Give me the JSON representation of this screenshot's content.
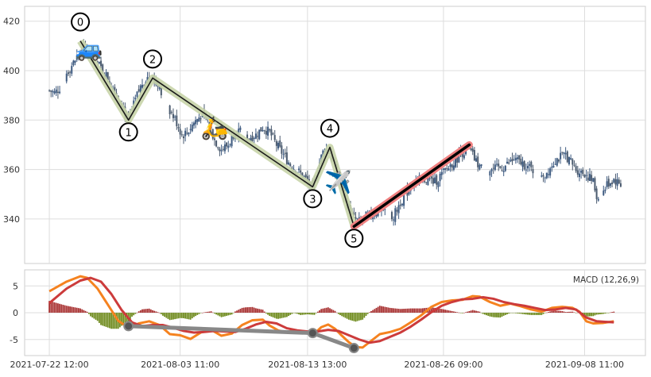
{
  "chart_data": [
    {
      "type": "candlestick",
      "panel": "price",
      "ylim": [
        322,
        426
      ],
      "yticks": [
        340,
        360,
        380,
        400,
        420
      ],
      "grid": true,
      "ohlc_profile": [
        [
          0,
          392
        ],
        [
          3,
          391
        ],
        [
          6,
          393
        ],
        [
          10,
          399
        ],
        [
          14,
          403
        ],
        [
          18,
          408
        ],
        [
          22,
          410
        ],
        [
          26,
          405
        ],
        [
          30,
          401
        ],
        [
          34,
          397
        ],
        [
          38,
          392
        ],
        [
          42,
          387
        ],
        [
          44,
          382
        ],
        [
          46,
          380
        ],
        [
          48,
          384
        ],
        [
          51,
          390
        ],
        [
          54,
          395
        ],
        [
          57,
          397
        ],
        [
          60,
          398
        ],
        [
          63,
          394
        ],
        [
          66,
          389
        ],
        [
          70,
          384
        ],
        [
          74,
          379
        ],
        [
          77,
          374
        ],
        [
          80,
          375
        ],
        [
          84,
          379
        ],
        [
          88,
          382
        ],
        [
          92,
          380
        ],
        [
          96,
          372
        ],
        [
          100,
          368
        ],
        [
          104,
          370
        ],
        [
          108,
          376
        ],
        [
          112,
          375
        ],
        [
          116,
          373
        ],
        [
          120,
          374
        ],
        [
          124,
          377
        ],
        [
          128,
          375
        ],
        [
          132,
          370
        ],
        [
          136,
          366
        ],
        [
          140,
          362
        ],
        [
          145,
          359
        ],
        [
          149,
          356
        ],
        [
          153,
          352
        ],
        [
          157,
          363
        ],
        [
          160,
          369
        ],
        [
          163,
          367
        ],
        [
          166,
          361
        ],
        [
          169,
          354
        ],
        [
          172,
          348
        ],
        [
          175,
          343
        ],
        [
          177,
          340
        ],
        [
          180,
          339
        ],
        [
          184,
          341
        ],
        [
          188,
          342
        ],
        [
          192,
          344
        ],
        [
          196,
          343
        ],
        [
          200,
          341
        ],
        [
          204,
          347
        ],
        [
          208,
          351
        ],
        [
          212,
          355
        ],
        [
          216,
          356
        ],
        [
          220,
          356
        ],
        [
          224,
          355
        ],
        [
          228,
          358
        ],
        [
          232,
          361
        ],
        [
          236,
          364
        ],
        [
          240,
          367
        ],
        [
          244,
          368
        ],
        [
          248,
          363
        ],
        [
          252,
          360
        ],
        [
          258,
          360
        ],
        [
          264,
          361
        ],
        [
          270,
          364
        ],
        [
          276,
          362
        ],
        [
          282,
          359
        ],
        [
          288,
          358
        ],
        [
          294,
          364
        ],
        [
          300,
          366
        ],
        [
          306,
          360
        ],
        [
          312,
          358
        ],
        [
          316,
          355
        ],
        [
          318,
          349
        ],
        [
          320,
          348
        ],
        [
          324,
          354
        ],
        [
          328,
          356
        ],
        [
          332,
          354
        ]
      ],
      "candle_count": 333,
      "candle_color_up": "#3d5a80",
      "candle_color_down": "#4a5a6e",
      "zigzag_points": [
        {
          "label": "0",
          "bar": 18,
          "value": 412
        },
        {
          "label": "1",
          "bar": 46,
          "value": 380
        },
        {
          "label": "2",
          "bar": 60,
          "value": 397
        },
        {
          "label": "3",
          "bar": 153,
          "value": 353
        },
        {
          "label": "4",
          "bar": 163,
          "value": 369
        },
        {
          "label": "5",
          "bar": 177,
          "value": 337
        }
      ],
      "trend_line": {
        "start_bar": 177,
        "start_value": 337,
        "end_bar": 244,
        "end_value": 370,
        "color": "#000000",
        "glow": "#f08080"
      },
      "zigzag_color": "#1a1a1a",
      "zigzag_glow": "#c8d4a8",
      "emojis": [
        {
          "name": "car-icon",
          "glyph": "🚙",
          "bar": 23,
          "value": 409
        },
        {
          "name": "scooter-icon",
          "glyph": "🛵",
          "bar": 96,
          "value": 377
        },
        {
          "name": "airplane-icon",
          "glyph": "✈️",
          "bar": 168,
          "value": 355
        }
      ]
    },
    {
      "type": "macd",
      "panel": "indicator",
      "label": "MACD (12,26,9)",
      "ylim": [
        -8,
        8
      ],
      "yticks": [
        -5,
        0,
        5
      ],
      "grid": true,
      "x_tick_labels": [
        "2021-07-22 12:00",
        "2021-08-03 11:00",
        "2021-08-13 13:00",
        "2021-08-26 09:00",
        "2021-09-08 11:00"
      ],
      "x_tick_bars": [
        0,
        76,
        150,
        229,
        311
      ],
      "macd_line": [
        [
          0,
          4.0
        ],
        [
          10,
          5.8
        ],
        [
          18,
          6.8
        ],
        [
          22,
          6.5
        ],
        [
          28,
          4.5
        ],
        [
          34,
          1.5
        ],
        [
          40,
          -1.5
        ],
        [
          46,
          -2.8
        ],
        [
          52,
          -2.0
        ],
        [
          58,
          -1.6
        ],
        [
          64,
          -2.3
        ],
        [
          70,
          -4.0
        ],
        [
          76,
          -4.2
        ],
        [
          82,
          -4.9
        ],
        [
          88,
          -3.7
        ],
        [
          94,
          -3.2
        ],
        [
          100,
          -4.3
        ],
        [
          106,
          -3.9
        ],
        [
          112,
          -2.3
        ],
        [
          118,
          -1.4
        ],
        [
          124,
          -1.3
        ],
        [
          128,
          -2.4
        ],
        [
          133,
          -3.3
        ],
        [
          138,
          -3.7
        ],
        [
          142,
          -3.2
        ],
        [
          146,
          -3.8
        ],
        [
          150,
          -3.8
        ],
        [
          154,
          -3.9
        ],
        [
          158,
          -2.7
        ],
        [
          162,
          -2.2
        ],
        [
          166,
          -3.0
        ],
        [
          170,
          -4.3
        ],
        [
          174,
          -5.5
        ],
        [
          178,
          -6.4
        ],
        [
          182,
          -6.5
        ],
        [
          186,
          -5.5
        ],
        [
          192,
          -4.0
        ],
        [
          198,
          -3.6
        ],
        [
          204,
          -3.0
        ],
        [
          210,
          -1.8
        ],
        [
          216,
          -0.5
        ],
        [
          222,
          1.1
        ],
        [
          228,
          2.0
        ],
        [
          234,
          2.3
        ],
        [
          240,
          2.4
        ],
        [
          246,
          3.1
        ],
        [
          250,
          3.0
        ],
        [
          256,
          2.0
        ],
        [
          262,
          1.3
        ],
        [
          268,
          1.7
        ],
        [
          274,
          1.2
        ],
        [
          280,
          0.6
        ],
        [
          286,
          0.2
        ],
        [
          292,
          0.9
        ],
        [
          298,
          1.1
        ],
        [
          304,
          0.9
        ],
        [
          308,
          0.2
        ],
        [
          312,
          -1.6
        ],
        [
          316,
          -2.0
        ],
        [
          322,
          -1.9
        ],
        [
          328,
          -1.6
        ]
      ],
      "signal_line": [
        [
          0,
          1.8
        ],
        [
          10,
          4.5
        ],
        [
          18,
          6.0
        ],
        [
          24,
          6.5
        ],
        [
          30,
          5.8
        ],
        [
          36,
          3.5
        ],
        [
          42,
          0.5
        ],
        [
          48,
          -1.8
        ],
        [
          54,
          -2.5
        ],
        [
          60,
          -2.3
        ],
        [
          66,
          -2.3
        ],
        [
          72,
          -2.8
        ],
        [
          78,
          -3.4
        ],
        [
          84,
          -3.7
        ],
        [
          90,
          -3.6
        ],
        [
          96,
          -3.4
        ],
        [
          102,
          -3.5
        ],
        [
          108,
          -3.6
        ],
        [
          114,
          -3.0
        ],
        [
          120,
          -2.2
        ],
        [
          126,
          -1.7
        ],
        [
          132,
          -2.0
        ],
        [
          138,
          -2.9
        ],
        [
          144,
          -3.3
        ],
        [
          150,
          -3.5
        ],
        [
          156,
          -3.5
        ],
        [
          162,
          -3.2
        ],
        [
          168,
          -3.4
        ],
        [
          174,
          -4.2
        ],
        [
          180,
          -5.0
        ],
        [
          186,
          -5.6
        ],
        [
          192,
          -5.3
        ],
        [
          198,
          -4.5
        ],
        [
          204,
          -3.7
        ],
        [
          210,
          -2.6
        ],
        [
          216,
          -1.3
        ],
        [
          222,
          0.1
        ],
        [
          228,
          1.3
        ],
        [
          234,
          2.0
        ],
        [
          240,
          2.5
        ],
        [
          246,
          2.6
        ],
        [
          252,
          2.9
        ],
        [
          258,
          2.6
        ],
        [
          264,
          2.0
        ],
        [
          270,
          1.6
        ],
        [
          276,
          1.3
        ],
        [
          282,
          0.9
        ],
        [
          288,
          0.5
        ],
        [
          294,
          0.6
        ],
        [
          300,
          0.9
        ],
        [
          306,
          0.6
        ],
        [
          312,
          -0.9
        ],
        [
          318,
          -1.6
        ],
        [
          328,
          -1.8
        ]
      ],
      "macd_color": "#f5821f",
      "signal_color": "#cc3b3b",
      "hist_pos_color": "#a83232",
      "hist_neg_color": "#6e8a1c",
      "divergence_points": [
        {
          "bar": 46,
          "value": -2.5
        },
        {
          "bar": 153,
          "value": -3.8
        },
        {
          "bar": 177,
          "value": -6.6
        }
      ],
      "divergence_color": "#888888"
    }
  ]
}
